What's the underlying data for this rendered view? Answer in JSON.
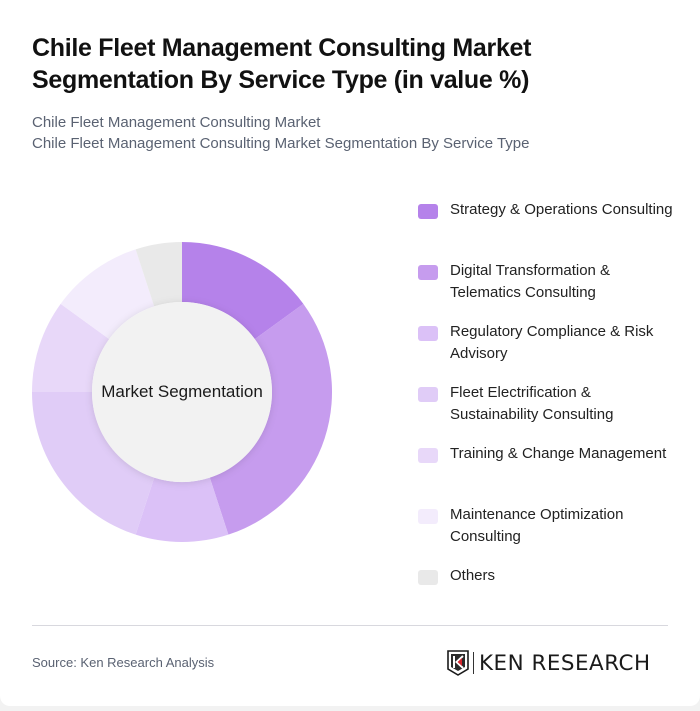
{
  "header": {
    "title_line1": "Chile Fleet Management Consulting Market",
    "title_line2": "Segmentation By Service Type (in value %)",
    "subtitle_line1": "Chile Fleet Management Consulting Market",
    "subtitle_line2": "Chile Fleet Management Consulting Market Segmentation By Service Type"
  },
  "chart": {
    "center_label": "Market Segmentation"
  },
  "legend": [
    {
      "label": "Strategy & Operations Consulting",
      "color": "#b582ea"
    },
    {
      "label": "Digital Transformation & Telematics Consulting",
      "color": "#c69cee"
    },
    {
      "label": "Regulatory Compliance & Risk Advisory",
      "color": "#dbc1f7"
    },
    {
      "label": "Fleet Electrification & Sustainability Consulting",
      "color": "#e0ccf7"
    },
    {
      "label": "Training & Change Management",
      "color": "#e8d8f9"
    },
    {
      "label": "Maintenance Optimization Consulting",
      "color": "#f3ecfc"
    },
    {
      "label": "Others",
      "color": "#e9e9e9"
    }
  ],
  "footer": {
    "source": "Source: Ken Research Analysis",
    "logo_text": "KEN RESEARCH"
  },
  "chart_data": {
    "type": "pie",
    "variant": "donut",
    "title": "Chile Fleet Management Consulting Market Segmentation By Service Type (in value %)",
    "subtitle": "Chile Fleet Management Consulting Market Segmentation By Service Type",
    "center_label": "Market Segmentation",
    "categories": [
      "Strategy & Operations Consulting",
      "Digital Transformation & Telematics Consulting",
      "Regulatory Compliance & Risk Advisory",
      "Fleet Electrification & Sustainability Consulting",
      "Training & Change Management",
      "Maintenance Optimization Consulting",
      "Others"
    ],
    "values": [
      15,
      30,
      10,
      20,
      10,
      10,
      5
    ],
    "colors": [
      "#b582ea",
      "#c69cee",
      "#dbc1f7",
      "#e0ccf7",
      "#e8d8f9",
      "#f3ecfc",
      "#e9e9e9"
    ],
    "unit": "%",
    "start_angle_deg": 0,
    "direction": "clockwise",
    "legend_position": "right",
    "source": "Source: Ken Research Analysis"
  }
}
